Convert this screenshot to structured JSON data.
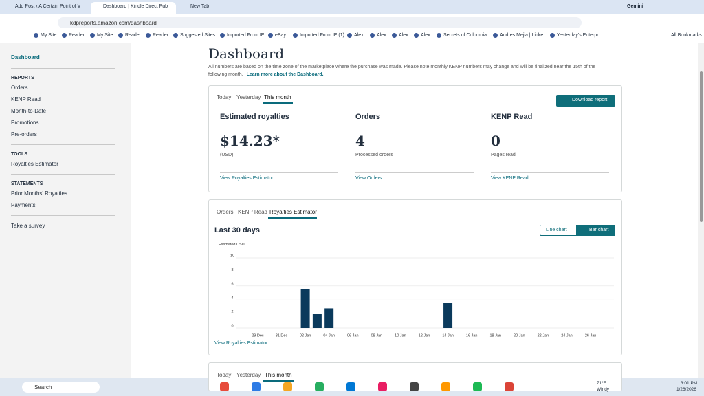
{
  "browser": {
    "tabs": [
      "Add Post ‹ A Certain Point of V",
      "Dashboard | Kindle Direct Publi",
      "New Tab"
    ],
    "gemini": "Gemini",
    "url": "kdpreports.amazon.com/dashboard",
    "bookmarks": [
      "My Site",
      "Reader",
      "My Site",
      "Reader",
      "Reader",
      "Suggested Sites",
      "Imported From IE",
      "eBay",
      "Imported From IE (1)",
      "Alex",
      "Alex",
      "Alex",
      "Alex",
      "Secrets of Colombia...",
      "Andres Mejia | Linke...",
      "Yesterday's Enterpri..."
    ],
    "all_bookmarks": "All Bookmarks"
  },
  "sidebar": {
    "dashboard": "Dashboard",
    "sections": [
      {
        "title": "REPORTS",
        "items": [
          "Orders",
          "KENP Read",
          "Month-to-Date",
          "Promotions",
          "Pre-orders"
        ]
      },
      {
        "title": "TOOLS",
        "items": [
          "Royalties Estimator"
        ]
      },
      {
        "title": "STATEMENTS",
        "items": [
          "Prior Months' Royalties",
          "Payments"
        ]
      }
    ],
    "survey": "Take a survey"
  },
  "header": {
    "title": "Dashboard",
    "note": "All numbers are based on the time zone of the marketplace where the purchase was made. Please note monthly KENP numbers may change and will be finalized near the 15th of the following month.",
    "link": "Learn more about the Dashboard."
  },
  "summary": {
    "tabs": [
      "Today",
      "Yesterday",
      "This month"
    ],
    "download": "Download report",
    "cards": [
      {
        "title": "Estimated royalties",
        "value": "$14.23*",
        "caption": "(USD)",
        "link": "View Royalties Estimator"
      },
      {
        "title": "Orders",
        "value": 4,
        "caption": "Processed orders",
        "link": "View Orders"
      },
      {
        "title": "KENP Read",
        "value": 0,
        "caption": "Pages read",
        "link": "View KENP Read"
      }
    ]
  },
  "chart_panel": {
    "tabs": [
      "Orders",
      "KENP Read",
      "Royalties Estimator"
    ],
    "toggles": [
      "Line chart",
      "Bar chart"
    ],
    "link": "View Royalties Estimator"
  },
  "chart_data": {
    "type": "bar",
    "title": "Last 30 days",
    "y_label": "Estimated USD",
    "categories": [
      null,
      "29 Dec",
      null,
      "31 Dec",
      null,
      "02 Jan",
      null,
      "04 Jan",
      null,
      "06 Jan",
      null,
      "08 Jan",
      null,
      "10 Jan",
      null,
      "12 Jan",
      null,
      "14 Jan",
      null,
      "16 Jan",
      null,
      "18 Jan",
      null,
      "20 Jan",
      null,
      "22 Jan",
      null,
      "24 Jan",
      null,
      "26 Jan"
    ],
    "values": [
      0,
      0,
      0,
      0,
      0,
      5.5,
      2,
      2.8,
      0,
      0,
      0,
      0,
      0,
      0,
      0,
      0,
      0,
      3.6,
      0,
      0,
      0,
      0,
      0,
      0,
      0,
      0,
      0,
      0,
      0,
      0
    ],
    "color": "#0b3a5c",
    "ylim": [
      0,
      10
    ],
    "yticks": [
      0,
      2,
      4,
      6,
      8,
      10
    ],
    "grid": true
  },
  "next_panel": {
    "tabs": [
      "Today",
      "Yesterday",
      "This month"
    ]
  },
  "taskbar": {
    "search": "Search",
    "temp": "71°F",
    "weather": "Windy",
    "time": "3:01 PM",
    "date": "1/26/2026"
  }
}
